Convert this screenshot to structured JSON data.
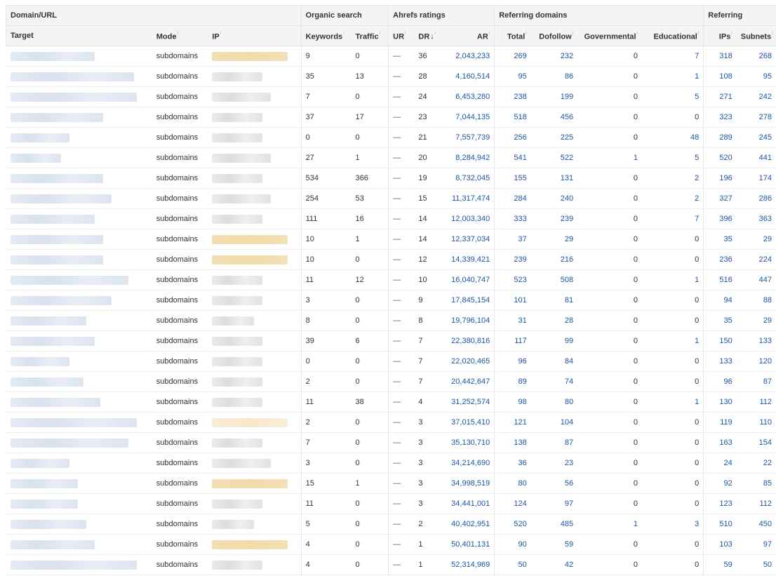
{
  "groups": {
    "domain_url": "Domain/URL",
    "organic_search": "Organic search",
    "ahrefs_ratings": "Ahrefs ratings",
    "referring_domains": "Referring domains",
    "referring": "Referring"
  },
  "columns": {
    "target": "Target",
    "mode": "Mode",
    "ip": "IP",
    "keywords": "Keywords",
    "traffic": "Traffic",
    "ur": "UR",
    "dr": "DR",
    "ar": "AR",
    "total": "Total",
    "dofollow": "Dofollow",
    "governmental": "Governmental",
    "educational": "Educational",
    "ips": "IPs",
    "subnets": "Subnets"
  },
  "icons": {
    "info": "info-icon",
    "sort": "sort-down-arrow-icon"
  },
  "colors": {
    "link": "#1a56a5",
    "header_bg": "#f4f4f4",
    "ip_highlight": "#f3deb4"
  },
  "rows": [
    {
      "mode": "subdomains",
      "ip_highlight": "yellow",
      "keywords": "9",
      "traffic": "0",
      "ur": "—",
      "dr": "36",
      "ar": "2,043,233",
      "total": "269",
      "dofollow": "232",
      "governmental": "0",
      "educational": "7",
      "ips": "318",
      "subnets": "268"
    },
    {
      "mode": "subdomains",
      "ip_highlight": "none",
      "keywords": "35",
      "traffic": "13",
      "ur": "—",
      "dr": "28",
      "ar": "4,160,514",
      "total": "95",
      "dofollow": "86",
      "governmental": "0",
      "educational": "1",
      "ips": "108",
      "subnets": "95"
    },
    {
      "mode": "subdomains",
      "ip_highlight": "none",
      "keywords": "7",
      "traffic": "0",
      "ur": "—",
      "dr": "24",
      "ar": "6,453,280",
      "total": "238",
      "dofollow": "199",
      "governmental": "0",
      "educational": "5",
      "ips": "271",
      "subnets": "242"
    },
    {
      "mode": "subdomains",
      "ip_highlight": "none",
      "keywords": "37",
      "traffic": "17",
      "ur": "—",
      "dr": "23",
      "ar": "7,044,135",
      "total": "518",
      "dofollow": "456",
      "governmental": "0",
      "educational": "0",
      "ips": "323",
      "subnets": "278"
    },
    {
      "mode": "subdomains",
      "ip_highlight": "none",
      "keywords": "0",
      "traffic": "0",
      "ur": "—",
      "dr": "21",
      "ar": "7,557,739",
      "total": "256",
      "dofollow": "225",
      "governmental": "0",
      "educational": "48",
      "ips": "289",
      "subnets": "245"
    },
    {
      "mode": "subdomains",
      "ip_highlight": "none",
      "keywords": "27",
      "traffic": "1",
      "ur": "—",
      "dr": "20",
      "ar": "8,284,942",
      "total": "541",
      "dofollow": "522",
      "governmental": "1",
      "educational": "5",
      "ips": "520",
      "subnets": "441"
    },
    {
      "mode": "subdomains",
      "ip_highlight": "none",
      "keywords": "534",
      "traffic": "366",
      "ur": "—",
      "dr": "19",
      "ar": "8,732,045",
      "total": "155",
      "dofollow": "131",
      "governmental": "0",
      "educational": "2",
      "ips": "196",
      "subnets": "174"
    },
    {
      "mode": "subdomains",
      "ip_highlight": "none",
      "keywords": "254",
      "traffic": "53",
      "ur": "—",
      "dr": "15",
      "ar": "11,317,474",
      "total": "284",
      "dofollow": "240",
      "governmental": "0",
      "educational": "2",
      "ips": "327",
      "subnets": "286"
    },
    {
      "mode": "subdomains",
      "ip_highlight": "none",
      "keywords": "111",
      "traffic": "16",
      "ur": "—",
      "dr": "14",
      "ar": "12,003,340",
      "total": "333",
      "dofollow": "239",
      "governmental": "0",
      "educational": "7",
      "ips": "396",
      "subnets": "363"
    },
    {
      "mode": "subdomains",
      "ip_highlight": "yellow",
      "keywords": "10",
      "traffic": "1",
      "ur": "—",
      "dr": "14",
      "ar": "12,337,034",
      "total": "37",
      "dofollow": "29",
      "governmental": "0",
      "educational": "0",
      "ips": "35",
      "subnets": "29"
    },
    {
      "mode": "subdomains",
      "ip_highlight": "yellow",
      "keywords": "10",
      "traffic": "0",
      "ur": "—",
      "dr": "12",
      "ar": "14,339,421",
      "total": "239",
      "dofollow": "216",
      "governmental": "0",
      "educational": "0",
      "ips": "236",
      "subnets": "224"
    },
    {
      "mode": "subdomains",
      "ip_highlight": "none",
      "keywords": "11",
      "traffic": "12",
      "ur": "—",
      "dr": "10",
      "ar": "16,040,747",
      "total": "523",
      "dofollow": "508",
      "governmental": "0",
      "educational": "1",
      "ips": "516",
      "subnets": "447"
    },
    {
      "mode": "subdomains",
      "ip_highlight": "none",
      "keywords": "3",
      "traffic": "0",
      "ur": "—",
      "dr": "9",
      "ar": "17,845,154",
      "total": "101",
      "dofollow": "81",
      "governmental": "0",
      "educational": "0",
      "ips": "94",
      "subnets": "88"
    },
    {
      "mode": "subdomains",
      "ip_highlight": "none",
      "keywords": "8",
      "traffic": "0",
      "ur": "—",
      "dr": "8",
      "ar": "19,796,104",
      "total": "31",
      "dofollow": "28",
      "governmental": "0",
      "educational": "0",
      "ips": "35",
      "subnets": "29"
    },
    {
      "mode": "subdomains",
      "ip_highlight": "none",
      "keywords": "39",
      "traffic": "6",
      "ur": "—",
      "dr": "7",
      "ar": "22,380,816",
      "total": "117",
      "dofollow": "99",
      "governmental": "0",
      "educational": "1",
      "ips": "150",
      "subnets": "133"
    },
    {
      "mode": "subdomains",
      "ip_highlight": "none",
      "keywords": "0",
      "traffic": "0",
      "ur": "—",
      "dr": "7",
      "ar": "22,020,465",
      "total": "96",
      "dofollow": "84",
      "governmental": "0",
      "educational": "0",
      "ips": "133",
      "subnets": "120"
    },
    {
      "mode": "subdomains",
      "ip_highlight": "none",
      "keywords": "2",
      "traffic": "0",
      "ur": "—",
      "dr": "7",
      "ar": "20,442,647",
      "total": "89",
      "dofollow": "74",
      "governmental": "0",
      "educational": "0",
      "ips": "96",
      "subnets": "87"
    },
    {
      "mode": "subdomains",
      "ip_highlight": "none",
      "keywords": "11",
      "traffic": "38",
      "ur": "—",
      "dr": "4",
      "ar": "31,252,574",
      "total": "98",
      "dofollow": "80",
      "governmental": "0",
      "educational": "1",
      "ips": "130",
      "subnets": "112"
    },
    {
      "mode": "subdomains",
      "ip_highlight": "light",
      "keywords": "2",
      "traffic": "0",
      "ur": "—",
      "dr": "3",
      "ar": "37,015,410",
      "total": "121",
      "dofollow": "104",
      "governmental": "0",
      "educational": "0",
      "ips": "119",
      "subnets": "110"
    },
    {
      "mode": "subdomains",
      "ip_highlight": "none",
      "keywords": "7",
      "traffic": "0",
      "ur": "—",
      "dr": "3",
      "ar": "35,130,710",
      "total": "138",
      "dofollow": "87",
      "governmental": "0",
      "educational": "0",
      "ips": "163",
      "subnets": "154"
    },
    {
      "mode": "subdomains",
      "ip_highlight": "none",
      "keywords": "3",
      "traffic": "0",
      "ur": "—",
      "dr": "3",
      "ar": "34,214,690",
      "total": "36",
      "dofollow": "23",
      "governmental": "0",
      "educational": "0",
      "ips": "24",
      "subnets": "22"
    },
    {
      "mode": "subdomains",
      "ip_highlight": "yellow",
      "keywords": "15",
      "traffic": "1",
      "ur": "—",
      "dr": "3",
      "ar": "34,998,519",
      "total": "80",
      "dofollow": "56",
      "governmental": "0",
      "educational": "0",
      "ips": "92",
      "subnets": "85"
    },
    {
      "mode": "subdomains",
      "ip_highlight": "none",
      "keywords": "11",
      "traffic": "0",
      "ur": "—",
      "dr": "3",
      "ar": "34,441,001",
      "total": "124",
      "dofollow": "97",
      "governmental": "0",
      "educational": "0",
      "ips": "123",
      "subnets": "112"
    },
    {
      "mode": "subdomains",
      "ip_highlight": "none",
      "keywords": "5",
      "traffic": "0",
      "ur": "—",
      "dr": "2",
      "ar": "40,402,951",
      "total": "520",
      "dofollow": "485",
      "governmental": "1",
      "educational": "3",
      "ips": "510",
      "subnets": "450"
    },
    {
      "mode": "subdomains",
      "ip_highlight": "yellow",
      "keywords": "4",
      "traffic": "0",
      "ur": "—",
      "dr": "1",
      "ar": "50,401,131",
      "total": "90",
      "dofollow": "59",
      "governmental": "0",
      "educational": "0",
      "ips": "103",
      "subnets": "97"
    },
    {
      "mode": "subdomains",
      "ip_highlight": "none",
      "keywords": "4",
      "traffic": "0",
      "ur": "—",
      "dr": "1",
      "ar": "52,314,969",
      "total": "50",
      "dofollow": "42",
      "governmental": "0",
      "educational": "0",
      "ips": "59",
      "subnets": "50"
    }
  ]
}
